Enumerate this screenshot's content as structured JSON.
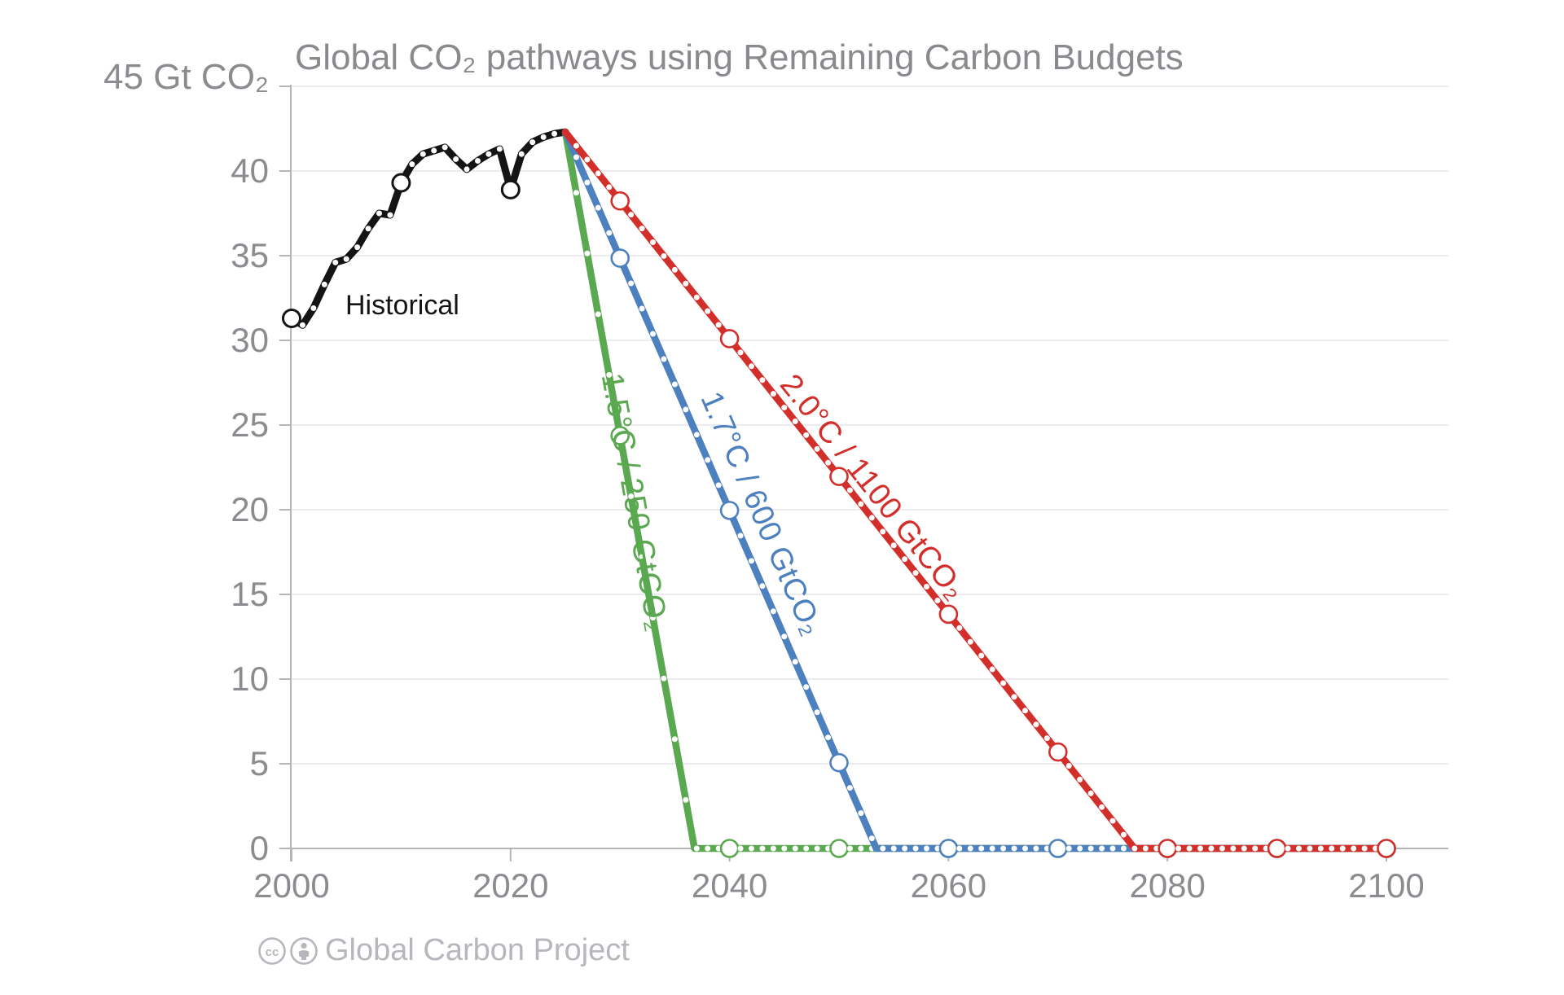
{
  "attribution": {
    "text": "Global Carbon Project",
    "icons": [
      "cc-icon",
      "cc-by-person-icon"
    ]
  },
  "chart_data": {
    "type": "line",
    "title": "Global CO₂ pathways using Remaining Carbon Budgets",
    "y_top_label": "45 Gt CO₂",
    "xlabel": "",
    "ylabel": "Gt CO₂",
    "x_range": [
      2000,
      2100
    ],
    "y_range": [
      0,
      45
    ],
    "x_ticks": [
      2000,
      2020,
      2040,
      2060,
      2080,
      2100
    ],
    "y_ticks": [
      0,
      5,
      10,
      15,
      20,
      25,
      30,
      35,
      40
    ],
    "grid": "horizontal",
    "marker_style": "yearly white dots, open circles each decade",
    "series": [
      {
        "name": "historical",
        "label": "Historical",
        "color": "#141414",
        "years_start": 2000,
        "values": [
          31.3,
          30.9,
          31.9,
          33.3,
          34.6,
          34.8,
          35.5,
          36.6,
          37.5,
          37.4,
          39.3,
          40.4,
          41.0,
          41.2,
          41.4,
          40.7,
          40.1,
          40.6,
          41.0,
          41.3,
          38.9,
          41.0,
          41.7,
          42.0,
          42.2,
          42.3
        ]
      },
      {
        "name": "pathway-1.5C",
        "label": "1.5°C / 250 GtCO₂",
        "color": "#5aa84f",
        "budget_gtco2": 250,
        "start_year": 2025,
        "start_value": 42.3,
        "zero_year": 2036.8,
        "end_year": 2100
      },
      {
        "name": "pathway-1.7C",
        "label": "1.7°C / 600 GtCO₂",
        "color": "#4d80be",
        "budget_gtco2": 600,
        "start_year": 2025,
        "start_value": 42.3,
        "zero_year": 2053.4,
        "end_year": 2100
      },
      {
        "name": "pathway-2.0C",
        "label": "2.0°C / 1100 GtCO₂",
        "color": "#d32f2a",
        "budget_gtco2": 1100,
        "start_year": 2025,
        "start_value": 42.3,
        "zero_year": 2077.0,
        "end_year": 2100
      }
    ]
  }
}
